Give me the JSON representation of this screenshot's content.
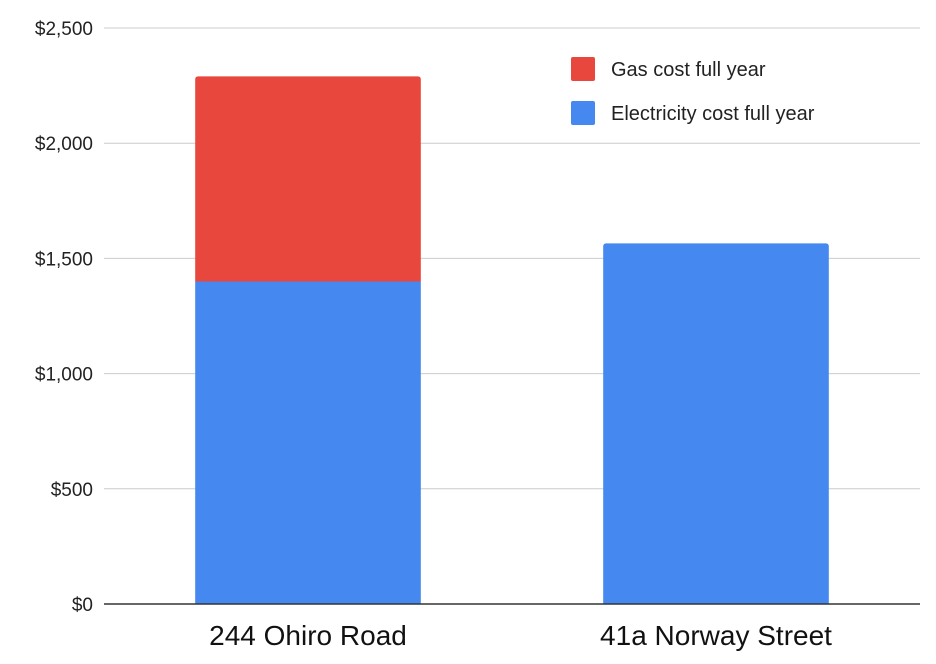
{
  "chart_data": {
    "type": "bar",
    "stacked": true,
    "categories": [
      "244 Ohiro Road",
      "41a Norway Street"
    ],
    "series": [
      {
        "name": "Electricity cost full year",
        "color": "#4589f0",
        "values": [
          1400,
          1565
        ]
      },
      {
        "name": "Gas cost full year",
        "color": "#e8473e",
        "values": [
          890,
          0
        ]
      }
    ],
    "ylim": [
      0,
      2500
    ],
    "yticks": [
      0,
      500,
      1000,
      1500,
      2000,
      2500
    ],
    "ytick_labels": [
      "$0",
      "$500",
      "$1,000",
      "$1,500",
      "$2,000",
      "$2,500"
    ],
    "grid": true,
    "legend": {
      "position": "top-right",
      "entries": [
        "Gas cost full year",
        "Electricity cost full year"
      ]
    },
    "title": "",
    "xlabel": "",
    "ylabel": ""
  }
}
